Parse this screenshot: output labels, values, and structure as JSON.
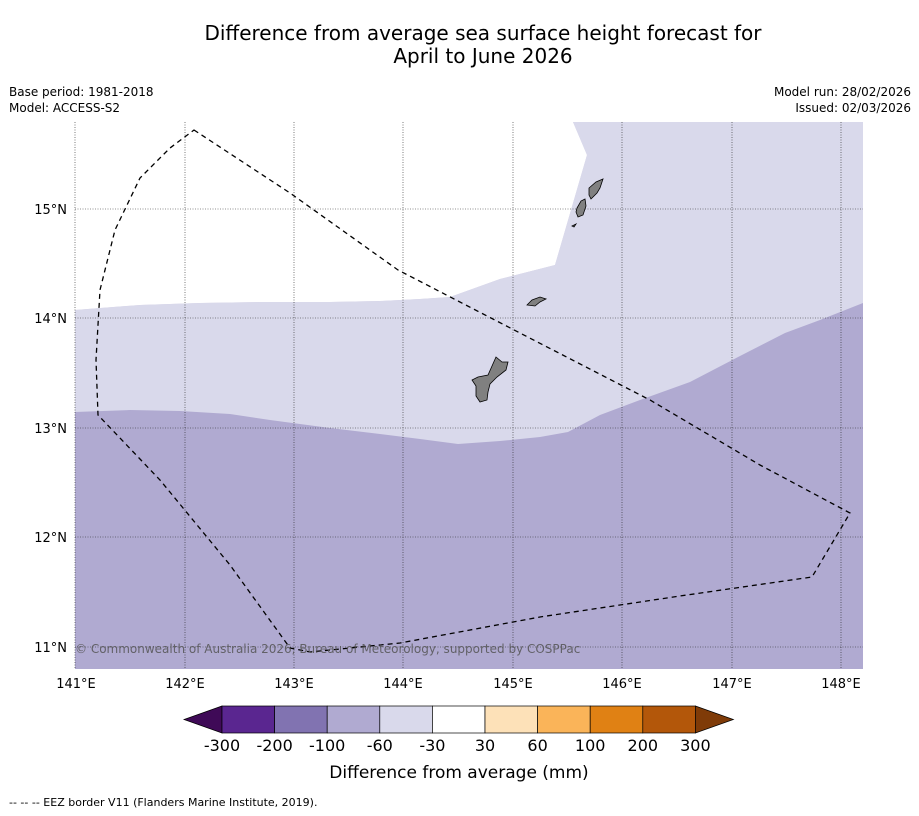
{
  "title": {
    "line1": "Difference from average sea surface height forecast for",
    "line2": "April to June 2026"
  },
  "meta_left": {
    "base_period": "Base period: 1981-2018",
    "model": "Model: ACCESS-S2"
  },
  "meta_right": {
    "model_run": "Model run: 28/02/2026",
    "issued": "Issued: 02/03/2026"
  },
  "map": {
    "x_ticks": [
      "141°E",
      "142°E",
      "143°E",
      "144°E",
      "145°E",
      "146°E",
      "147°E",
      "148°E"
    ],
    "y_ticks": [
      "15°N",
      "14°N",
      "13°N",
      "12°N",
      "11°N"
    ],
    "copyright": "© Commonwealth of Australia 2026, Bureau of Meteorology, supported by COSPPac"
  },
  "colorbar": {
    "tick_labels": [
      "-300",
      "-200",
      "-100",
      "-60",
      "-30",
      "30",
      "60",
      "100",
      "200",
      "300"
    ],
    "colors": [
      "#3f0a57",
      "#5a2690",
      "#8173b1",
      "#b0aad1",
      "#d9d9eb",
      "#ffffff",
      "#fde1b8",
      "#fab459",
      "#e08114",
      "#b3570a",
      "#7f3b08"
    ],
    "label": "Difference from average (mm)"
  },
  "footer": "--  --  -- EEZ border V11 (Flanders Marine Institute, 2019)."
}
